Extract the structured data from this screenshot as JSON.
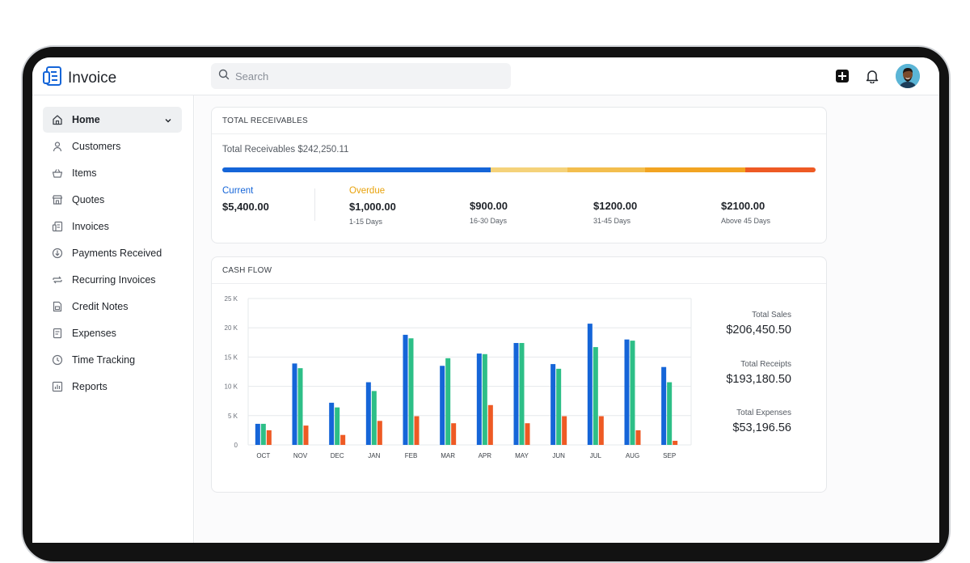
{
  "app": {
    "title": "Invoice"
  },
  "search": {
    "placeholder": "Search"
  },
  "sidebar": {
    "items": [
      {
        "label": "Home",
        "icon": "home-icon",
        "active": true
      },
      {
        "label": "Customers",
        "icon": "user-icon"
      },
      {
        "label": "Items",
        "icon": "basket-icon"
      },
      {
        "label": "Quotes",
        "icon": "store-icon"
      },
      {
        "label": "Invoices",
        "icon": "invoice-icon"
      },
      {
        "label": "Payments Received",
        "icon": "payment-icon"
      },
      {
        "label": "Recurring Invoices",
        "icon": "recurring-icon"
      },
      {
        "label": "Credit Notes",
        "icon": "credit-note-icon"
      },
      {
        "label": "Expenses",
        "icon": "expense-icon"
      },
      {
        "label": "Time Tracking",
        "icon": "clock-icon"
      },
      {
        "label": "Reports",
        "icon": "reports-icon"
      }
    ]
  },
  "receivables": {
    "title": "TOTAL RECEIVABLES",
    "total_text": "Total Receivables $242,250.11",
    "current": {
      "label": "Current",
      "amount": "$5,400.00"
    },
    "overdue_label": "Overdue",
    "buckets": [
      {
        "amount": "$1,000.00",
        "range": "1-15 Days"
      },
      {
        "amount": "$900.00",
        "range": "16-30 Days"
      },
      {
        "amount": "$1200.00",
        "range": "31-45 Days"
      },
      {
        "amount": "$2100.00",
        "range": "Above 45 Days"
      }
    ],
    "bar_segments": [
      {
        "share": 0.452,
        "color": "#1565d8"
      },
      {
        "share": 0.13,
        "color": "#f5d27a"
      },
      {
        "share": 0.13,
        "color": "#f3be4e"
      },
      {
        "share": 0.17,
        "color": "#f2a422"
      },
      {
        "share": 0.118,
        "color": "#ee5a24"
      }
    ]
  },
  "cashflow": {
    "title": "CASH FLOW",
    "totals": [
      {
        "label": "Total Sales",
        "value": "$206,450.50"
      },
      {
        "label": "Total Receipts",
        "value": "$193,180.50"
      },
      {
        "label": "Total Expenses",
        "value": "$53,196.56"
      }
    ]
  },
  "colors": {
    "sales": "#1565d8",
    "receipts": "#2dbf87",
    "expenses": "#ee5a24",
    "current": "#1565d8",
    "overdue": "#e8a20c"
  },
  "chart_data": {
    "type": "bar",
    "categories": [
      "OCT",
      "NOV",
      "DEC",
      "JAN",
      "FEB",
      "MAR",
      "APR",
      "MAY",
      "JUN",
      "JUL",
      "AUG",
      "SEP"
    ],
    "series": [
      {
        "values": [
          3600,
          13900,
          7200,
          10700,
          18800,
          13500,
          15600,
          17400,
          13800,
          20700,
          18000,
          13300
        ]
      },
      {
        "values": [
          3600,
          13100,
          6400,
          9200,
          18200,
          14800,
          15500,
          17400,
          13000,
          16700,
          17800,
          10700
        ]
      },
      {
        "values": [
          2500,
          3300,
          1700,
          4100,
          4900,
          3700,
          6800,
          3700,
          4900,
          4900,
          2500,
          700
        ]
      }
    ],
    "yticks": [
      "0",
      "5 K",
      "10 K",
      "15 K",
      "20 K",
      "25 K"
    ],
    "ylim": [
      0,
      25000
    ],
    "grid": true
  }
}
